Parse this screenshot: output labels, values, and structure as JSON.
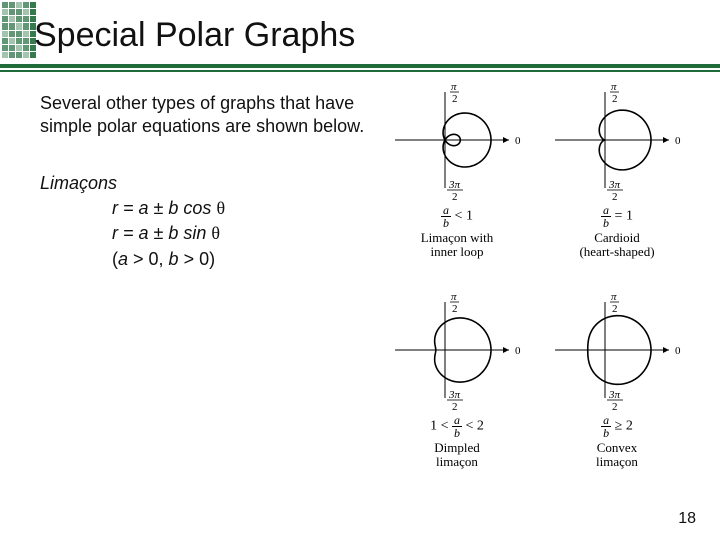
{
  "title": "Special Polar Graphs",
  "intro": "Several other types of graphs that have simple polar equations are shown below.",
  "family_name": "Limaçons",
  "eq1_pre": "r = a ± b cos ",
  "eq1_theta": "θ",
  "eq2_pre": "r = a ± b sin ",
  "eq2_theta": "θ",
  "eq_cond": "(a > 0, b > 0)",
  "page_number": "18",
  "axis": {
    "top_n": "π",
    "top_d": "2",
    "bottom_n": "3π",
    "bottom_d": "2",
    "right": "0"
  },
  "cells": [
    {
      "cond_html": "<span class='frac'><span class='n'><i>a</i></span><span class='d'><i>b</i></span></span> &lt; 1",
      "caption": "Limaçon with<br>inner loop",
      "a": 0.5,
      "b": 1.0
    },
    {
      "cond_html": "<span class='frac'><span class='n'><i>a</i></span><span class='d'><i>b</i></span></span> = 1",
      "caption": "Cardioid<br>(heart-shaped)",
      "a": 1.0,
      "b": 1.0
    },
    {
      "cond_html": "1 &lt; <span class='frac'><span class='n'><i>a</i></span><span class='d'><i>b</i></span></span> &lt; 2",
      "caption": "Dimpled<br>limaçon",
      "a": 1.5,
      "b": 1.0
    },
    {
      "cond_html": "<span class='frac'><span class='n'><i>a</i></span><span class='d'><i>b</i></span></span> ≥ 2",
      "caption": "Convex<br>limaçon",
      "a": 2.2,
      "b": 1.0
    }
  ],
  "colors": {
    "accent": "#1f6b3a",
    "text": "#111111",
    "curve": "#000000",
    "axis": "#000000",
    "bg": "#ffffff"
  }
}
